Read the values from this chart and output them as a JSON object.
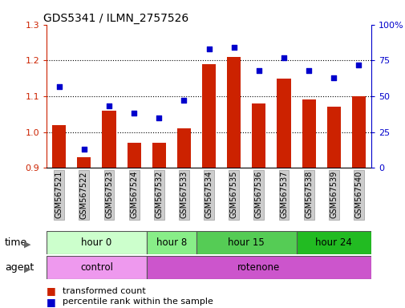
{
  "title": "GDS5341 / ILMN_2757526",
  "samples": [
    "GSM567521",
    "GSM567522",
    "GSM567523",
    "GSM567524",
    "GSM567532",
    "GSM567533",
    "GSM567534",
    "GSM567535",
    "GSM567536",
    "GSM567537",
    "GSM567538",
    "GSM567539",
    "GSM567540"
  ],
  "red_values": [
    1.02,
    0.93,
    1.06,
    0.97,
    0.97,
    1.01,
    1.19,
    1.21,
    1.08,
    1.15,
    1.09,
    1.07,
    1.1
  ],
  "blue_values": [
    57,
    13,
    43,
    38,
    35,
    47,
    83,
    84,
    68,
    77,
    68,
    63,
    72
  ],
  "ylim_left": [
    0.9,
    1.3
  ],
  "ylim_right": [
    0,
    100
  ],
  "yticks_left": [
    0.9,
    1.0,
    1.1,
    1.2,
    1.3
  ],
  "yticks_right": [
    0,
    25,
    50,
    75,
    100
  ],
  "ytick_labels_right": [
    "0",
    "25",
    "50",
    "75",
    "100%"
  ],
  "bar_color": "#cc2200",
  "dot_color": "#0000cc",
  "grid_color": "#000000",
  "time_groups": [
    {
      "label": "hour 0",
      "start": 0,
      "end": 4,
      "color": "#ccffcc"
    },
    {
      "label": "hour 8",
      "start": 4,
      "end": 6,
      "color": "#88ee88"
    },
    {
      "label": "hour 15",
      "start": 6,
      "end": 10,
      "color": "#55cc55"
    },
    {
      "label": "hour 24",
      "start": 10,
      "end": 13,
      "color": "#22bb22"
    }
  ],
  "agent_groups": [
    {
      "label": "control",
      "start": 0,
      "end": 4,
      "color": "#ee99ee"
    },
    {
      "label": "rotenone",
      "start": 4,
      "end": 13,
      "color": "#cc55cc"
    }
  ],
  "legend_red": "transformed count",
  "legend_blue": "percentile rank within the sample",
  "tick_label_bg": "#cccccc",
  "tick_label_edge": "#999999"
}
